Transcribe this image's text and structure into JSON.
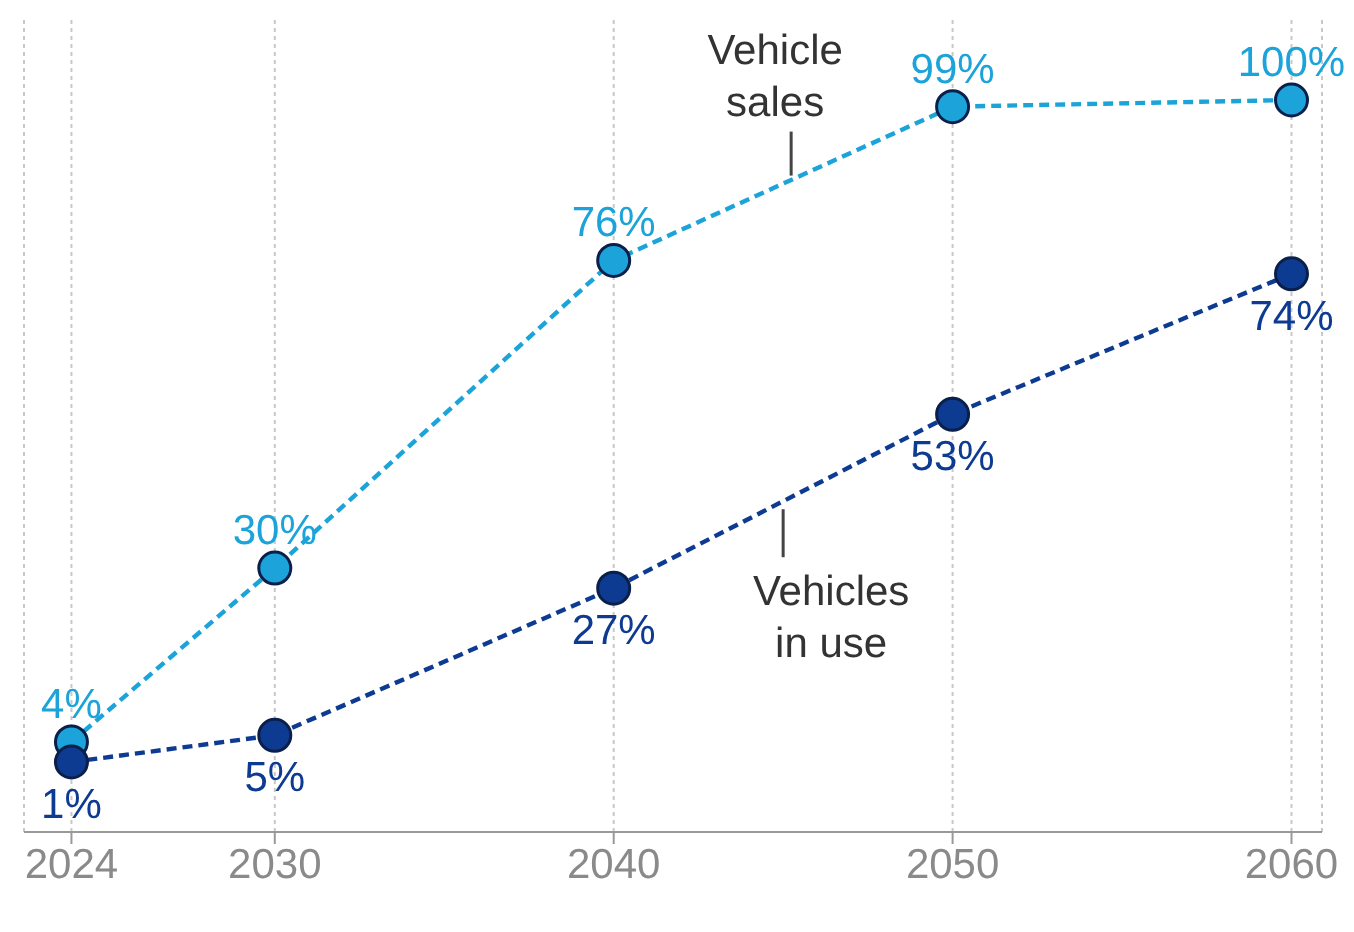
{
  "chart_data": {
    "type": "line",
    "x": [
      2024,
      2030,
      2040,
      2050,
      2060
    ],
    "xlim": [
      2022.6,
      2060.9
    ],
    "xticks": [
      2024,
      2030,
      2040,
      2050,
      2060
    ],
    "tick_labels": "x",
    "grid": "x",
    "marker": "circle",
    "line_style": "dashed",
    "legend": false,
    "series": [
      {
        "name": "Vehicle sales",
        "color": "#1ba3da",
        "values": [
          4,
          30,
          76,
          99,
          100
        ],
        "value_labels": [
          "4%",
          "30%",
          "76%",
          "99%",
          "100%"
        ]
      },
      {
        "name": "Vehicles in use",
        "color": "#0e3b92",
        "values": [
          1,
          5,
          27,
          53,
          74
        ],
        "value_labels": [
          "1%",
          "5%",
          "27%",
          "53%",
          "74%"
        ]
      }
    ]
  }
}
